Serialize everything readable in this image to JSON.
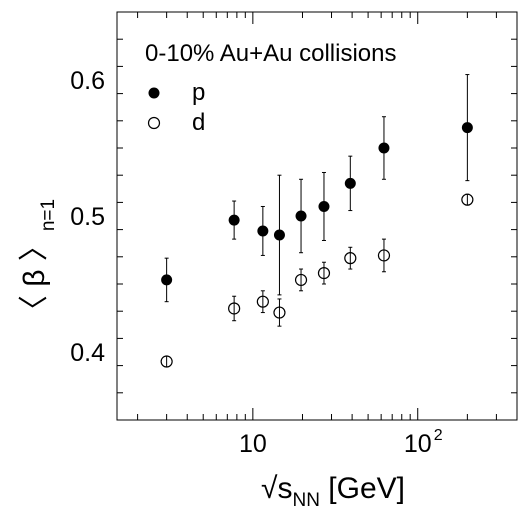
{
  "chart_data": {
    "type": "scatter",
    "title": "0-10% Au+Au collisions",
    "xlabel": {
      "prefix": "√",
      "main": "s",
      "sub": "NN",
      "suffix": " [GeV]"
    },
    "ylabel": {
      "open": "〈",
      "main": " β ",
      "close": "〉",
      "sub": "n=1"
    },
    "x_scale": "log",
    "xlim": [
      1.5,
      400
    ],
    "ylim": [
      0.35,
      0.65
    ],
    "x_ticks": [
      {
        "value": 10,
        "label": "10"
      },
      {
        "value": 100,
        "label": "10",
        "sup": "2"
      }
    ],
    "y_ticks": [
      {
        "value": 0.4,
        "label": "0.4"
      },
      {
        "value": 0.5,
        "label": "0.5"
      },
      {
        "value": 0.6,
        "label": "0.6"
      }
    ],
    "legend_position": "top-left",
    "series": [
      {
        "name": "p",
        "marker": "filled-circle",
        "color": "#000000",
        "points": [
          {
            "x": 3.0,
            "y": 0.453,
            "err": 0.016
          },
          {
            "x": 7.7,
            "y": 0.497,
            "err": 0.014
          },
          {
            "x": 11.5,
            "y": 0.489,
            "err": 0.018
          },
          {
            "x": 14.5,
            "y": 0.486,
            "err": 0.044
          },
          {
            "x": 19.6,
            "y": 0.5,
            "err": 0.027
          },
          {
            "x": 27,
            "y": 0.507,
            "err": 0.025
          },
          {
            "x": 39,
            "y": 0.524,
            "err": 0.02
          },
          {
            "x": 62.4,
            "y": 0.55,
            "err": 0.023
          },
          {
            "x": 200,
            "y": 0.565,
            "err": 0.039
          }
        ]
      },
      {
        "name": "d",
        "marker": "open-circle",
        "color": "#000000",
        "points": [
          {
            "x": 3.0,
            "y": 0.393,
            "err": 0.003
          },
          {
            "x": 7.7,
            "y": 0.432,
            "err": 0.009
          },
          {
            "x": 11.5,
            "y": 0.437,
            "err": 0.008
          },
          {
            "x": 14.5,
            "y": 0.429,
            "err": 0.01
          },
          {
            "x": 19.6,
            "y": 0.453,
            "err": 0.008
          },
          {
            "x": 27,
            "y": 0.458,
            "err": 0.008
          },
          {
            "x": 39,
            "y": 0.469,
            "err": 0.008
          },
          {
            "x": 62.4,
            "y": 0.471,
            "err": 0.012
          },
          {
            "x": 200,
            "y": 0.512,
            "err": 0.004
          }
        ]
      }
    ]
  }
}
